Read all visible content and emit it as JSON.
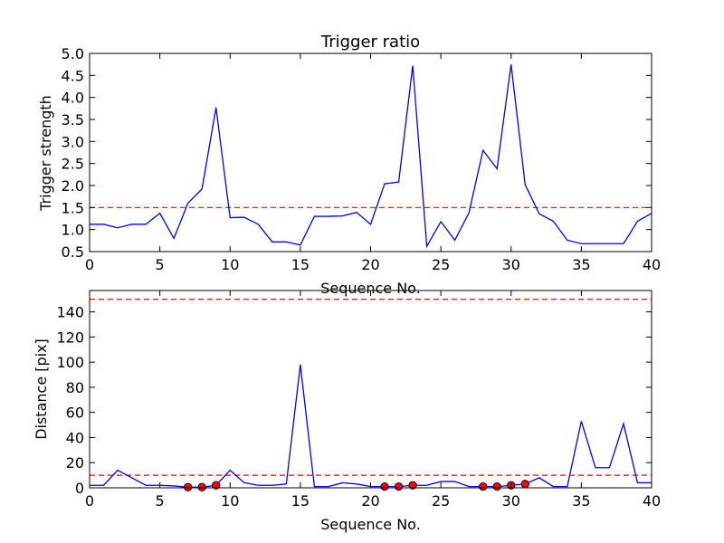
{
  "chart_data": [
    {
      "type": "line",
      "title": "Trigger ratio",
      "xlabel": "Sequence No.",
      "ylabel": "Trigger strength",
      "xlim": [
        0,
        40
      ],
      "ylim": [
        0.5,
        5.0
      ],
      "x_ticks": [
        0,
        5,
        10,
        15,
        20,
        25,
        30,
        35,
        40
      ],
      "y_ticks": [
        0.5,
        1.0,
        1.5,
        2.0,
        2.5,
        3.0,
        3.5,
        4.0,
        4.5,
        5.0
      ],
      "y_tick_labels": [
        "0.5",
        "1.0",
        "1.5",
        "2.0",
        "2.5",
        "3.0",
        "3.5",
        "4.0",
        "4.5",
        "5.0"
      ],
      "grid": false,
      "series": [
        {
          "color": "#0000ff",
          "x": [
            0,
            1,
            2,
            3,
            4,
            5,
            6,
            7,
            8,
            9,
            10,
            11,
            12,
            13,
            14,
            15,
            16,
            17,
            18,
            19,
            20,
            21,
            22,
            23,
            24,
            25,
            26,
            27,
            28,
            29,
            30,
            31,
            32,
            33,
            34,
            35,
            36,
            37,
            38,
            39,
            40
          ],
          "values": [
            1.12,
            1.12,
            1.04,
            1.12,
            1.12,
            1.37,
            0.8,
            1.6,
            1.92,
            3.77,
            1.27,
            1.28,
            1.12,
            0.72,
            0.72,
            0.65,
            1.3,
            1.3,
            1.31,
            1.39,
            1.12,
            2.04,
            2.08,
            4.72,
            0.62,
            1.18,
            0.76,
            1.38,
            2.8,
            2.38,
            4.75,
            2.02,
            1.36,
            1.19,
            0.76,
            0.68,
            0.68,
            0.68,
            0.68,
            1.19,
            1.37
          ]
        }
      ],
      "threshold": {
        "y": 1.5,
        "color": "#ff0000",
        "style": "dashed"
      }
    },
    {
      "type": "line",
      "title": "",
      "xlabel": "Sequence No.",
      "ylabel": "Distance [pix]",
      "xlim": [
        0,
        40
      ],
      "ylim": [
        0,
        157
      ],
      "x_ticks": [
        0,
        5,
        10,
        15,
        20,
        25,
        30,
        35,
        40
      ],
      "y_ticks": [
        0,
        20,
        40,
        60,
        80,
        100,
        120,
        140
      ],
      "y_tick_labels": [
        "0",
        "20",
        "40",
        "60",
        "80",
        "100",
        "120",
        "140"
      ],
      "grid": false,
      "series": [
        {
          "color": "#0000ff",
          "x": [
            0,
            1,
            2,
            3,
            4,
            5,
            6,
            7,
            8,
            9,
            10,
            11,
            12,
            13,
            14,
            15,
            16,
            17,
            18,
            19,
            20,
            21,
            22,
            23,
            24,
            25,
            26,
            27,
            28,
            29,
            30,
            31,
            32,
            33,
            34,
            35,
            36,
            37,
            38,
            39,
            40
          ],
          "values": [
            2,
            2,
            14,
            8,
            2,
            2,
            1.5,
            0.5,
            0.5,
            2,
            14,
            4,
            2,
            2,
            3,
            98,
            1,
            1,
            4,
            3,
            1,
            1,
            1,
            2,
            2,
            5,
            5,
            1,
            1,
            1,
            2,
            3,
            8,
            1,
            1,
            53,
            16,
            16,
            51,
            4,
            4
          ]
        }
      ],
      "markers": {
        "color": "#ff0000",
        "x": [
          7,
          8,
          9,
          21,
          22,
          23,
          28,
          29,
          30,
          31
        ],
        "values": [
          0.5,
          0.5,
          2,
          1,
          1,
          2,
          1,
          1,
          2,
          3
        ]
      },
      "thresholds": [
        {
          "y": 10,
          "color": "#ff0000",
          "style": "dashed"
        },
        {
          "y": 150,
          "color": "#ff0000",
          "style": "dashed"
        }
      ]
    }
  ]
}
